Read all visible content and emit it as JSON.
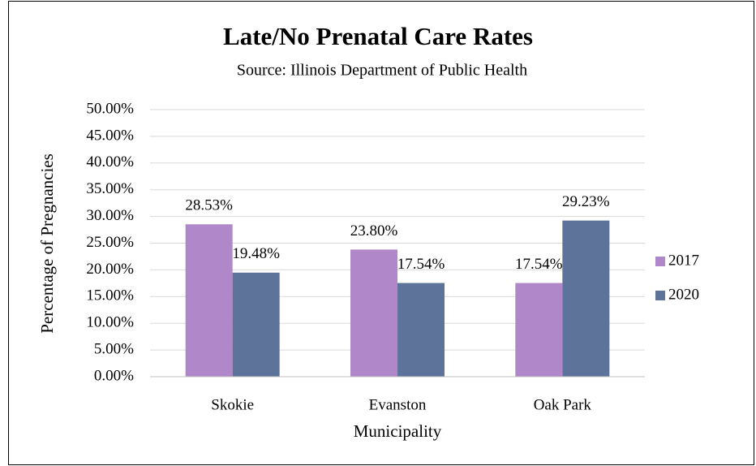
{
  "chart_data": {
    "type": "bar",
    "title": "Late/No Prenatal Care Rates",
    "subtitle": "Source: Illinois Department of Public Health",
    "x_label": "Municipality",
    "y_label": "Percentage of Pregnancies",
    "categories": [
      "Skokie",
      "Evanston",
      "Oak Park"
    ],
    "series": [
      {
        "name": "2017",
        "color": "#b087c8",
        "values": [
          28.53,
          23.8,
          17.54
        ],
        "value_labels": [
          "28.53%",
          "23.80%",
          "17.54%"
        ]
      },
      {
        "name": "2020",
        "color": "#5e7399",
        "values": [
          19.48,
          17.54,
          29.23
        ],
        "value_labels": [
          "19.48%",
          "17.54%",
          "29.23%"
        ]
      }
    ],
    "ylim": [
      0,
      50
    ],
    "yticks": [
      {
        "value": 0,
        "label": "0.00%"
      },
      {
        "value": 5,
        "label": "5.00%"
      },
      {
        "value": 10,
        "label": "10.00%"
      },
      {
        "value": 15,
        "label": "15.00%"
      },
      {
        "value": 20,
        "label": "20.00%"
      },
      {
        "value": 25,
        "label": "25.00%"
      },
      {
        "value": 30,
        "label": "30.00%"
      },
      {
        "value": 35,
        "label": "35.00%"
      },
      {
        "value": 40,
        "label": "40.00%"
      },
      {
        "value": 45,
        "label": "45.00%"
      },
      {
        "value": 50,
        "label": "50.00%"
      }
    ],
    "grid": true,
    "legend": "right"
  }
}
